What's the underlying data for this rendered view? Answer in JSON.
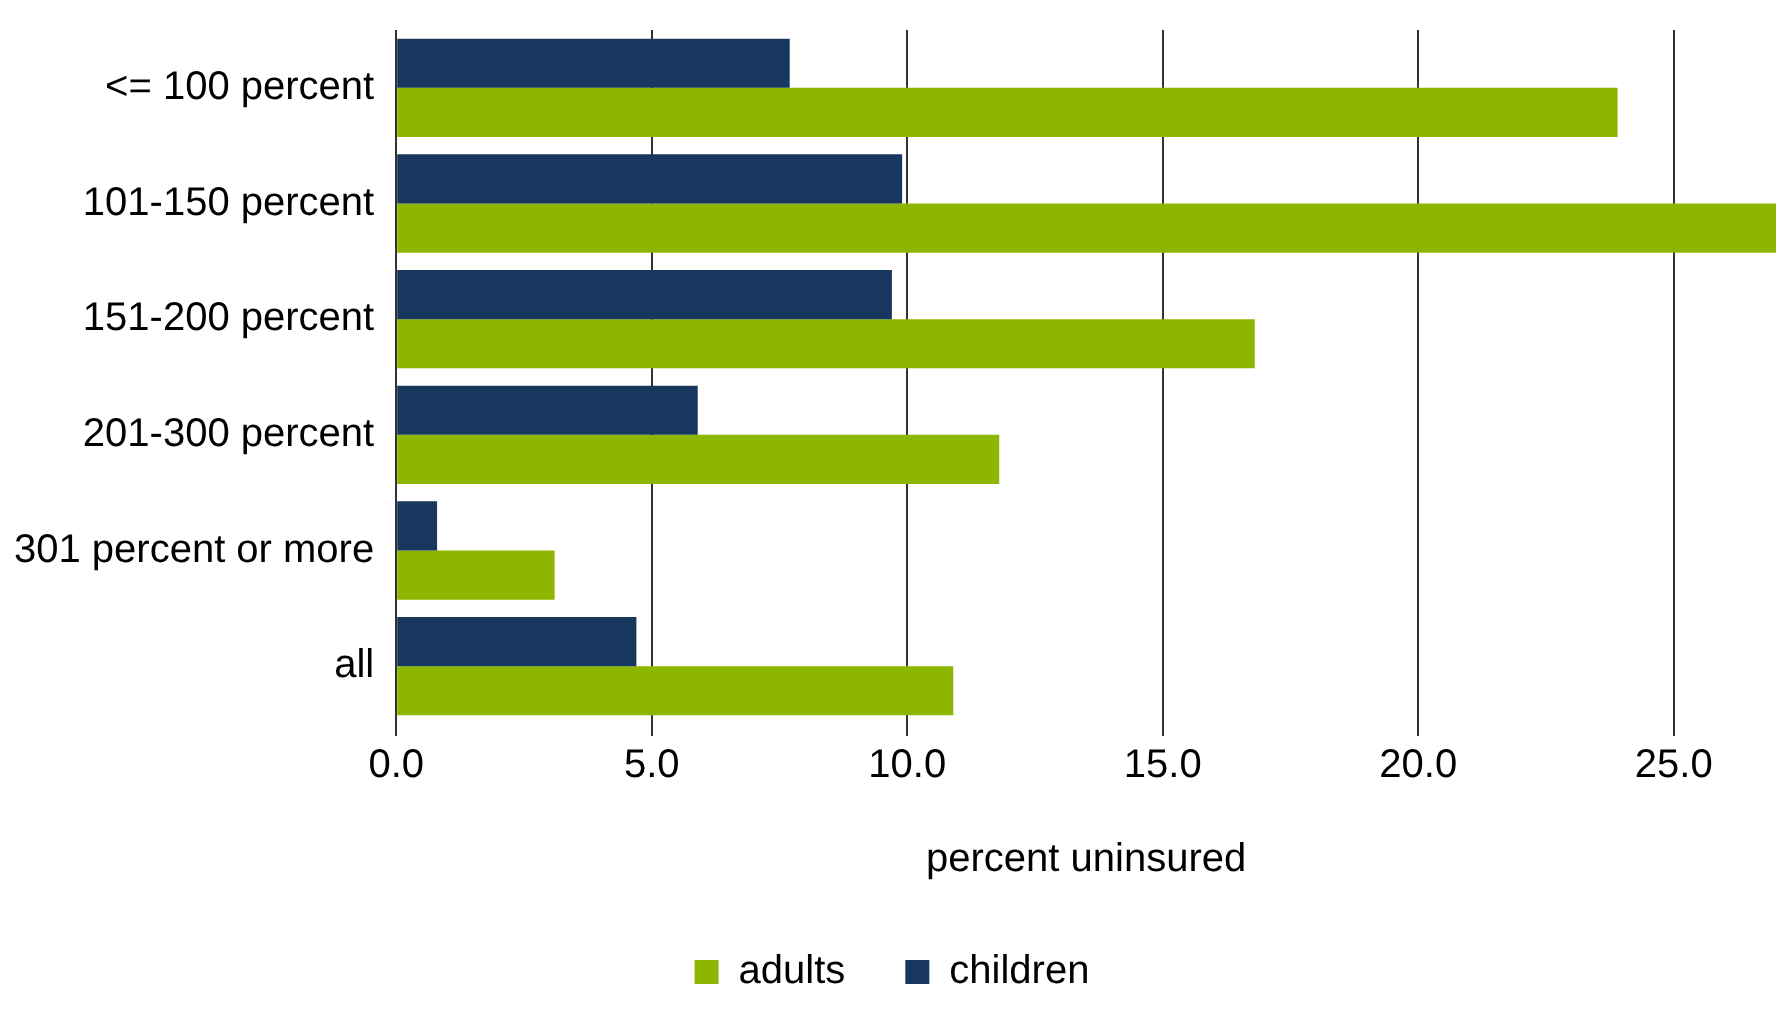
{
  "chart_data": {
    "type": "bar",
    "orientation": "horizontal",
    "xlabel": "percent uninsured",
    "categories": [
      "<= 100 percent",
      "101-150 percent",
      "151-200 percent",
      "201-300 percent",
      "301 percent or more",
      "all"
    ],
    "series": [
      {
        "name": "children",
        "color": "#17375e",
        "values": [
          7.7,
          9.9,
          9.7,
          5.9,
          0.8,
          4.7
        ]
      },
      {
        "name": "adults",
        "color": "#8db600",
        "values": [
          23.9,
          27,
          16.8,
          11.8,
          3.1,
          10.9
        ]
      }
    ],
    "xlim": [
      0,
      27
    ],
    "xticks": [
      {
        "value": 0,
        "label": "0.0"
      },
      {
        "value": 5,
        "label": "5.0"
      },
      {
        "value": 10,
        "label": "10.0"
      },
      {
        "value": 15,
        "label": "15.0"
      },
      {
        "value": 20,
        "label": "20.0"
      },
      {
        "value": 25,
        "label": "25.0"
      }
    ],
    "grid": "x",
    "legend": "bottom"
  }
}
